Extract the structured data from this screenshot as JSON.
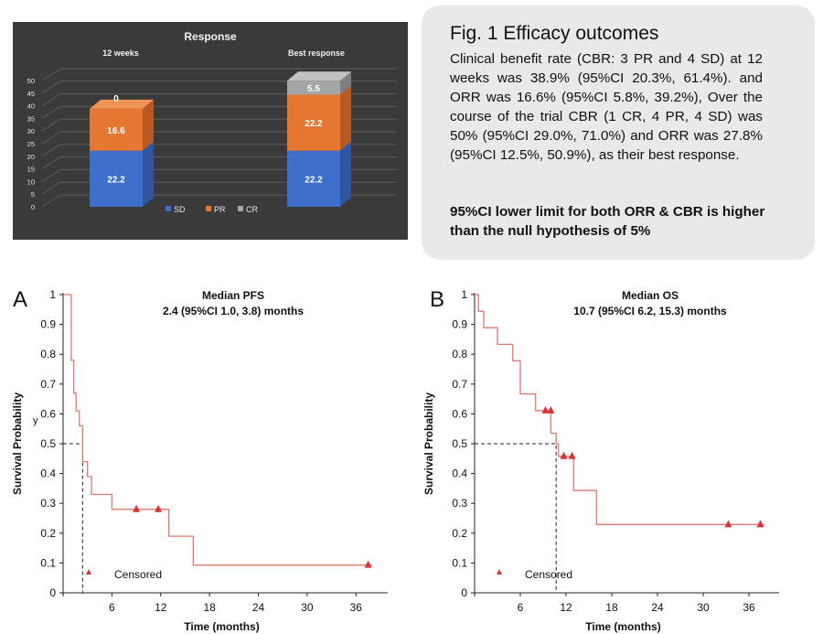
{
  "response_chart": {
    "title": "Response",
    "group_labels": [
      "12 weeks",
      "Best response"
    ],
    "y_ticks": [
      "0",
      "5",
      "10",
      "15",
      "20",
      "25",
      "30",
      "35",
      "40",
      "45",
      "50"
    ],
    "legend": [
      "SD",
      "PR",
      "CR"
    ],
    "colors": {
      "SD": "#3d6ec9",
      "PR": "#e67733",
      "CR": "#a6a6a6",
      "background": "#3a3a3a"
    }
  },
  "fig_text": {
    "title": "Fig. 1 Efficacy outcomes",
    "body": "Clinical benefit rate (CBR: 3 PR and 4 SD) at 12 weeks was 38.9% (95%CI 20.3%, 61.4%). and ORR was 16.6% (95%CI 5.8%, 39.2%), Over the course of the trial CBR (1 CR, 4 PR, 4 SD) was 50% (95%CI 29.0%, 71.0%) and ORR was 27.8% (95%CI 12.5%, 50.9%), as their best response.",
    "bold": "95%CI lower limit for both ORR & CBR is higher than the null hypothesis of 5%"
  },
  "km_a": {
    "letter": "A",
    "title": "Median PFS",
    "subtitle": "2.4 (95%CI 1.0, 3.8) months",
    "legend": "Censored",
    "stray_mark": "y"
  },
  "km_b": {
    "letter": "B",
    "title": "Median OS",
    "subtitle": "10.7 (95%CI 6.2, 15.3) months",
    "legend": "Censored"
  },
  "chart_data": [
    {
      "type": "bar",
      "stacked": true,
      "title": "Response",
      "categories": [
        "12 weeks",
        "Best response"
      ],
      "series": [
        {
          "name": "SD",
          "values": [
            22.2,
            22.2
          ],
          "labels": [
            "22.2",
            "22.2"
          ]
        },
        {
          "name": "PR",
          "values": [
            16.6,
            22.2
          ],
          "labels": [
            "16.6",
            "22.2"
          ]
        },
        {
          "name": "CR",
          "values": [
            0,
            5.5
          ],
          "labels": [
            "0",
            "5.5"
          ]
        }
      ],
      "ylim": [
        0,
        50
      ],
      "legend_position": "bottom"
    },
    {
      "type": "line",
      "step": true,
      "panel": "A",
      "title": "Median PFS",
      "subtitle": "2.4 (95%CI 1.0, 3.8) months",
      "xlabel": "Time (months)",
      "ylabel": "Survival Probability",
      "xlim": [
        0,
        39
      ],
      "ylim": [
        0,
        1
      ],
      "x_ticks": [
        "6",
        "12",
        "18",
        "24",
        "30",
        "36"
      ],
      "y_ticks": [
        "0",
        "0.1",
        "0.2",
        "0.3",
        "0.4",
        "0.5",
        "0.6",
        "0.7",
        "0.8",
        "0.9",
        "1"
      ],
      "curve": [
        [
          0,
          1
        ],
        [
          1,
          1
        ],
        [
          1,
          0.78
        ],
        [
          1.3,
          0.78
        ],
        [
          1.3,
          0.67
        ],
        [
          1.6,
          0.67
        ],
        [
          1.6,
          0.61
        ],
        [
          2,
          0.61
        ],
        [
          2,
          0.56
        ],
        [
          2.4,
          0.56
        ],
        [
          2.4,
          0.44
        ],
        [
          3,
          0.44
        ],
        [
          3,
          0.39
        ],
        [
          3.5,
          0.39
        ],
        [
          3.5,
          0.33
        ],
        [
          6,
          0.33
        ],
        [
          6,
          0.28
        ],
        [
          13,
          0.28
        ],
        [
          13,
          0.19
        ],
        [
          16,
          0.19
        ],
        [
          16,
          0.093
        ],
        [
          38,
          0.093
        ]
      ],
      "censored": [
        [
          9,
          0.28
        ],
        [
          11.7,
          0.28
        ],
        [
          37.5,
          0.093
        ]
      ],
      "median": 2.4
    },
    {
      "type": "line",
      "step": true,
      "panel": "B",
      "title": "Median OS",
      "subtitle": "10.7 (95%CI 6.2, 15.3) months",
      "xlabel": "Time (months)",
      "ylabel": "Survival Probability",
      "xlim": [
        0,
        39
      ],
      "ylim": [
        0,
        1
      ],
      "x_ticks": [
        "6",
        "12",
        "18",
        "24",
        "30",
        "36"
      ],
      "y_ticks": [
        "0",
        "0.1",
        "0.2",
        "0.3",
        "0.4",
        "0.5",
        "0.6",
        "0.7",
        "0.8",
        "0.9",
        "1"
      ],
      "curve": [
        [
          0,
          1
        ],
        [
          0.5,
          1
        ],
        [
          0.5,
          0.944
        ],
        [
          1.2,
          0.944
        ],
        [
          1.2,
          0.889
        ],
        [
          3,
          0.889
        ],
        [
          3,
          0.833
        ],
        [
          5,
          0.833
        ],
        [
          5,
          0.778
        ],
        [
          6,
          0.778
        ],
        [
          6,
          0.667
        ],
        [
          8,
          0.667
        ],
        [
          8,
          0.611
        ],
        [
          10,
          0.611
        ],
        [
          10,
          0.535
        ],
        [
          10.7,
          0.535
        ],
        [
          10.7,
          0.5
        ],
        [
          11,
          0.5
        ],
        [
          11,
          0.458
        ],
        [
          13,
          0.458
        ],
        [
          13,
          0.343
        ],
        [
          16,
          0.343
        ],
        [
          16,
          0.229
        ],
        [
          38,
          0.229
        ]
      ],
      "censored": [
        [
          9.3,
          0.611
        ],
        [
          10,
          0.611
        ],
        [
          11.7,
          0.458
        ],
        [
          12.8,
          0.458
        ],
        [
          33.3,
          0.229
        ],
        [
          37.5,
          0.229
        ]
      ],
      "median": 10.7
    }
  ]
}
